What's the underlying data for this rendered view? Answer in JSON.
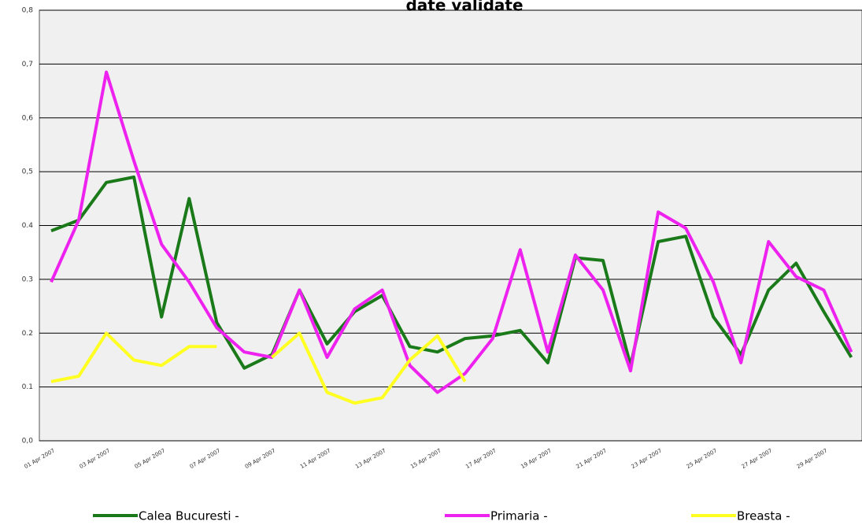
{
  "chart_data": {
    "type": "line",
    "title": "date validate",
    "categories": [
      "01 Apr 2007",
      null,
      "03 Apr 2007",
      null,
      "05 Apr 2007",
      null,
      "07 Apr 2007",
      null,
      "09 Apr 2007",
      null,
      "11 Apr 2007",
      null,
      "13 Apr 2007",
      null,
      "15 Apr 2007",
      null,
      "17 Apr 2007",
      null,
      "19 Apr 2007",
      null,
      "21 Apr 2007",
      null,
      "23 Apr 2007",
      null,
      "25 Apr 2007",
      null,
      "27 Apr 2007",
      null,
      "29 Apr 2007",
      null
    ],
    "series": [
      {
        "name": "Calea Bucuresti -",
        "color": "#1a7a1a",
        "values": [
          0.39,
          0.41,
          0.48,
          0.49,
          0.23,
          0.45,
          0.22,
          0.135,
          0.16,
          0.28,
          0.18,
          0.24,
          0.27,
          0.175,
          0.165,
          0.19,
          0.195,
          0.205,
          0.145,
          0.34,
          0.335,
          0.14,
          0.37,
          0.38,
          0.23,
          0.16,
          0.28,
          0.33,
          0.24,
          0.155
        ]
      },
      {
        "name": "Primaria -",
        "color": "#ee22ee",
        "values": [
          0.295,
          0.41,
          0.685,
          0.52,
          0.365,
          0.295,
          0.21,
          0.165,
          0.155,
          0.28,
          0.155,
          0.245,
          0.28,
          0.14,
          0.09,
          0.125,
          0.19,
          0.355,
          0.165,
          0.345,
          0.28,
          0.13,
          0.425,
          0.395,
          0.295,
          0.145,
          0.37,
          0.305,
          0.28,
          0.165
        ]
      },
      {
        "name": "Breasta -",
        "color": "#ffff22",
        "values": [
          0.11,
          0.12,
          0.2,
          0.15,
          0.14,
          0.175,
          0.175,
          null,
          0.155,
          0.2,
          0.09,
          0.07,
          0.08,
          0.15,
          0.195,
          0.11,
          null,
          null,
          null,
          null,
          null,
          null,
          null,
          null,
          null,
          null,
          null,
          null,
          null,
          null
        ]
      }
    ],
    "ylim": [
      0,
      0.8
    ],
    "yticks": [
      {
        "value": 0,
        "label": "0,0"
      },
      {
        "value": 0.1,
        "label": "0.1"
      },
      {
        "value": 0.2,
        "label": "0.2"
      },
      {
        "value": 0.3,
        "label": "0.3"
      },
      {
        "value": 0.4,
        "label": "0.4"
      },
      {
        "value": 0.5,
        "label": "0,5"
      },
      {
        "value": 0.6,
        "label": "0,6"
      },
      {
        "value": 0.7,
        "label": "0,7"
      },
      {
        "value": 0.8,
        "label": "0,8"
      }
    ],
    "grid": true
  }
}
